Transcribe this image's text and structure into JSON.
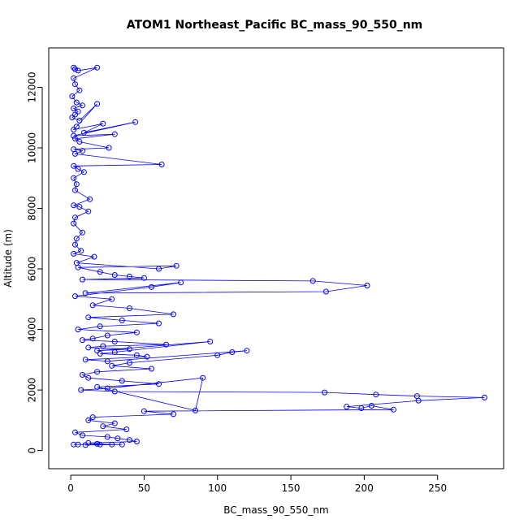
{
  "chart_data": {
    "type": "scatter",
    "title": "ATOM1 Northeast_Pacific BC_mass_90_550_nm",
    "xlabel": "BC_mass_90_550_nm",
    "ylabel": "Altitude (m)",
    "xlim": [
      -15,
      295
    ],
    "ylim": [
      -600,
      13300
    ],
    "x_ticks": [
      0,
      50,
      100,
      150,
      200,
      250
    ],
    "y_ticks": [
      0,
      2000,
      4000,
      6000,
      8000,
      10000,
      12000
    ],
    "x_tick_labels": [
      "0",
      "50",
      "100",
      "150",
      "200",
      "250"
    ],
    "y_tick_labels": [
      "0",
      "2000",
      "4000",
      "6000",
      "8000",
      "10000",
      "12000"
    ],
    "grid": false,
    "legend": "none",
    "marker": "open-circle",
    "connected": true,
    "color": "#0000ff",
    "series": [
      {
        "x": [
          2,
          3,
          5,
          18,
          2,
          3,
          6,
          1,
          4,
          8,
          2,
          5,
          3,
          1,
          6,
          18,
          4,
          2,
          22,
          9,
          44,
          2,
          30,
          3,
          6,
          26,
          2,
          8,
          3,
          62,
          2,
          5,
          9,
          2,
          4,
          3,
          13,
          2,
          6,
          12,
          3,
          2,
          8,
          4,
          3,
          7,
          2,
          16,
          4,
          60,
          72,
          5,
          20,
          30,
          40,
          50,
          8,
          165,
          202,
          174,
          10,
          75,
          55,
          3,
          28,
          15,
          40,
          70,
          12,
          35,
          60,
          20,
          5,
          45,
          25,
          15,
          8,
          30,
          65,
          22,
          12,
          40,
          18,
          95,
          30,
          20,
          45,
          52,
          10,
          25,
          120,
          110,
          100,
          40,
          28,
          55,
          18,
          8,
          12,
          35,
          60,
          18,
          85,
          90,
          25,
          7,
          30,
          173,
          208,
          236,
          282,
          237,
          188,
          198,
          205,
          220,
          50,
          70,
          15,
          12,
          30,
          22,
          38,
          3,
          8,
          25,
          32,
          40,
          45,
          12,
          18,
          28,
          5,
          20,
          10,
          35,
          2
        ],
        "y": [
          12650,
          12600,
          12550,
          12650,
          12300,
          12100,
          11900,
          11700,
          11500,
          11400,
          11300,
          11200,
          11100,
          11000,
          10900,
          11450,
          10700,
          10600,
          10800,
          10500,
          10850,
          10400,
          10450,
          10300,
          10200,
          10000,
          9950,
          9900,
          9800,
          9450,
          9400,
          9300,
          9200,
          9000,
          8800,
          8600,
          8300,
          8100,
          8050,
          7900,
          7700,
          7500,
          7200,
          7000,
          6800,
          6600,
          6500,
          6400,
          6200,
          6000,
          6100,
          6050,
          5900,
          5800,
          5750,
          5700,
          5650,
          5600,
          5450,
          5250,
          5200,
          5550,
          5400,
          5100,
          5000,
          4800,
          4700,
          4500,
          4400,
          4300,
          4200,
          4100,
          4000,
          3900,
          3800,
          3700,
          3650,
          3600,
          3500,
          3450,
          3400,
          3350,
          3300,
          3600,
          3250,
          3200,
          3150,
          3100,
          3000,
          2950,
          3300,
          3250,
          3150,
          2900,
          2800,
          2700,
          2600,
          2500,
          2400,
          2300,
          2200,
          2100,
          1320,
          2400,
          2050,
          2000,
          1950,
          1920,
          1850,
          1800,
          1750,
          1650,
          1450,
          1400,
          1480,
          1350,
          1300,
          1200,
          1100,
          1000,
          900,
          800,
          700,
          600,
          500,
          450,
          400,
          350,
          300,
          250,
          220,
          200,
          200,
          200,
          180,
          200,
          200
        ]
      }
    ]
  }
}
